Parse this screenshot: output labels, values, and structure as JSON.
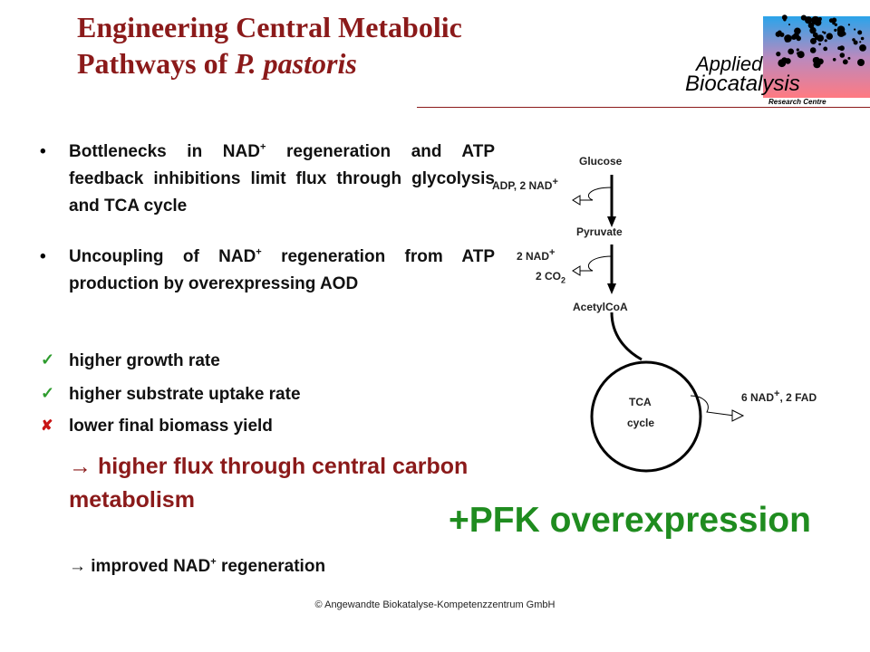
{
  "title": {
    "line1": "Engineering Central Metabolic",
    "line2_prefix": "Pathways of ",
    "line2_italic": "P. pastoris"
  },
  "logo": {
    "word1": "Applied",
    "word2": "Biocatalysis",
    "word3": "Research Centre"
  },
  "bullets": [
    {
      "text": "Bottlenecks in NAD<sup>+</sup> regeneration and ATP feedback inhibitions limit flux through glycolysis and TCA cycle"
    },
    {
      "text": "Uncoupling of NAD<sup>+</sup> regeneration from ATP production by overexpressing AOD"
    }
  ],
  "effects": [
    {
      "mark": "check",
      "text": "higher growth rate"
    },
    {
      "mark": "check",
      "text": "higher substrate uptake rate"
    },
    {
      "mark": "cross",
      "text": "lower final biomass yield"
    }
  ],
  "conclusion": "→ higher flux through central carbon metabolism",
  "improved": "→ improved NAD+ regeneration",
  "pfk": "+PFK overexpression",
  "footer": "© Angewandte Biokatalyse-Kompetenzzentrum GmbH",
  "diagram": {
    "glucose": "Glucose",
    "cofactor1": "ADP, 2 NAD+",
    "pyruvate": "Pyruvate",
    "cofactor2a": "2 NAD+",
    "cofactor2b": "2 CO2",
    "acetylcoa": "AcetylCoA",
    "tca1": "TCA",
    "tca2": "cycle",
    "cofactor3": "6 NAD+, 2 FAD"
  },
  "colors": {
    "title": "#8b1a1a",
    "pfk": "#1f8c1f",
    "check": "#2e9c2e",
    "cross": "#c81414"
  }
}
